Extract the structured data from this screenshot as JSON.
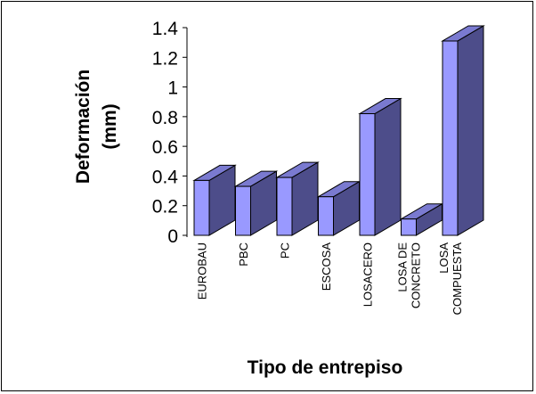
{
  "chart_data": {
    "type": "bar",
    "categories": [
      "EUROBAU",
      "PBC",
      "PC",
      "ESCOSA",
      "LOSACERO",
      "LOSA DE CONCRETO",
      "LOSA COMPUESTA"
    ],
    "category_lines": [
      [
        "EUROBAU"
      ],
      [
        "PBC"
      ],
      [
        "PC"
      ],
      [
        "ESCOSA"
      ],
      [
        "LOSACERO"
      ],
      [
        "LOSA DE",
        "CONCRETO"
      ],
      [
        "LOSA",
        "COMPUESTA"
      ]
    ],
    "values": [
      0.37,
      0.33,
      0.39,
      0.26,
      0.82,
      0.11,
      1.31
    ],
    "ylabel_lines": [
      "Deformación",
      "(mm)"
    ],
    "xlabel": "Tipo de entrepiso",
    "ylim": [
      0,
      1.4
    ],
    "yticks": [
      "0",
      "0.2",
      "0.4",
      "0.6",
      "0.8",
      "1",
      "1.2",
      "1.4"
    ],
    "grid": false,
    "legend": "none",
    "colors": {
      "front": "#9999ff",
      "side": "#4d4d8a",
      "top": "#7a7ad0",
      "edge": "#000000"
    }
  }
}
